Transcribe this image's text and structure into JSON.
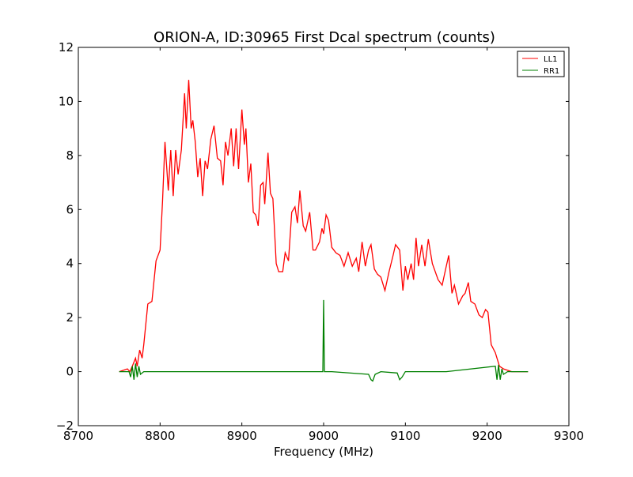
{
  "chart_data": {
    "type": "line",
    "title": "ORION-A, ID:30965 First Dcal spectrum (counts)",
    "xlabel": "Frequency (MHz)",
    "ylabel": "",
    "xlim": [
      8700,
      9300
    ],
    "ylim": [
      -2,
      12
    ],
    "xticks": [
      8700,
      8800,
      8900,
      9000,
      9100,
      9200,
      9300
    ],
    "yticks": [
      -2,
      0,
      2,
      4,
      6,
      8,
      10,
      12
    ],
    "ytick_labels": [
      "−2",
      "0",
      "2",
      "4",
      "6",
      "8",
      "10",
      "12"
    ],
    "grid": false,
    "legend": "top-right",
    "series": [
      {
        "name": "LL1",
        "color": "#ff0000",
        "x": [
          8750,
          8760,
          8763,
          8766,
          8770,
          8772,
          8775,
          8778,
          8780,
          8785,
          8790,
          8795,
          8800,
          8803,
          8806,
          8810,
          8813,
          8816,
          8819,
          8822,
          8826,
          8830,
          8832,
          8835,
          8838,
          8840,
          8843,
          8846,
          8849,
          8852,
          8855,
          8858,
          8862,
          8866,
          8870,
          8874,
          8877,
          8880,
          8883,
          8887,
          8890,
          8893,
          8896,
          8900,
          8903,
          8905,
          8908,
          8911,
          8914,
          8917,
          8920,
          8923,
          8926,
          8928,
          8932,
          8935,
          8938,
          8942,
          8945,
          8950,
          8953,
          8957,
          8961,
          8965,
          8968,
          8971,
          8975,
          8978,
          8983,
          8987,
          8990,
          8995,
          8998,
          9000,
          9003,
          9006,
          9010,
          9015,
          9020,
          9025,
          9030,
          9035,
          9040,
          9043,
          9047,
          9051,
          9055,
          9058,
          9062,
          9066,
          9070,
          9075,
          9080,
          9085,
          9088,
          9093,
          9097,
          9100,
          9103,
          9107,
          9110,
          9113,
          9116,
          9120,
          9124,
          9128,
          9133,
          9140,
          9145,
          9150,
          9153,
          9157,
          9160,
          9165,
          9170,
          9173,
          9177,
          9180,
          9185,
          9190,
          9194,
          9198,
          9201,
          9205,
          9210,
          9215,
          9220,
          9230,
          9250
        ],
        "y": [
          0,
          0.1,
          0.0,
          0.2,
          0.5,
          0.2,
          0.8,
          0.5,
          1.0,
          2.5,
          2.6,
          4.1,
          4.5,
          6.3,
          8.5,
          6.7,
          8.2,
          6.5,
          8.2,
          7.3,
          8.2,
          10.3,
          9.0,
          10.8,
          9.0,
          9.3,
          8.5,
          7.2,
          7.9,
          6.5,
          7.8,
          7.5,
          8.6,
          9.1,
          7.9,
          7.8,
          6.9,
          8.5,
          8.0,
          9.0,
          7.6,
          9.0,
          7.5,
          9.7,
          8.4,
          9.0,
          7.0,
          7.7,
          5.9,
          5.8,
          5.4,
          6.9,
          7.0,
          6.2,
          8.1,
          6.6,
          6.4,
          4.0,
          3.7,
          3.7,
          4.4,
          4.1,
          5.9,
          6.1,
          5.5,
          6.7,
          5.4,
          5.2,
          5.9,
          4.5,
          4.5,
          4.8,
          5.3,
          5.1,
          5.8,
          5.6,
          4.6,
          4.4,
          4.3,
          3.9,
          4.4,
          3.9,
          4.2,
          3.7,
          4.8,
          3.9,
          4.5,
          4.7,
          3.8,
          3.6,
          3.5,
          3.0,
          3.7,
          4.3,
          4.7,
          4.5,
          3.0,
          3.9,
          3.4,
          4.0,
          3.4,
          4.95,
          3.9,
          4.7,
          3.9,
          4.9,
          4.0,
          3.4,
          3.2,
          3.9,
          4.3,
          2.9,
          3.2,
          2.5,
          2.8,
          2.9,
          3.3,
          2.6,
          2.5,
          2.1,
          2.0,
          2.3,
          2.2,
          1.0,
          0.7,
          0.2,
          0.1,
          0,
          0
        ]
      },
      {
        "name": "RR1",
        "color": "#008000",
        "x": [
          8750,
          8762,
          8764,
          8766,
          8768,
          8770,
          8772,
          8774,
          8776,
          8780,
          8850,
          8900,
          8999,
          9000,
          9001,
          9010,
          9055,
          9058,
          9060,
          9063,
          9070,
          9090,
          9093,
          9096,
          9100,
          9150,
          9210,
          9212,
          9214,
          9216,
          9218,
          9220,
          9225,
          9250
        ],
        "y": [
          0,
          0,
          -0.2,
          0.2,
          -0.3,
          0.3,
          -0.2,
          0.2,
          -0.1,
          0,
          0,
          0,
          0,
          2.65,
          0,
          0,
          -0.1,
          -0.3,
          -0.35,
          -0.1,
          0,
          -0.05,
          -0.3,
          -0.2,
          0,
          0,
          0.2,
          -0.3,
          0.25,
          -0.3,
          0.1,
          -0.1,
          0,
          0
        ]
      }
    ]
  }
}
